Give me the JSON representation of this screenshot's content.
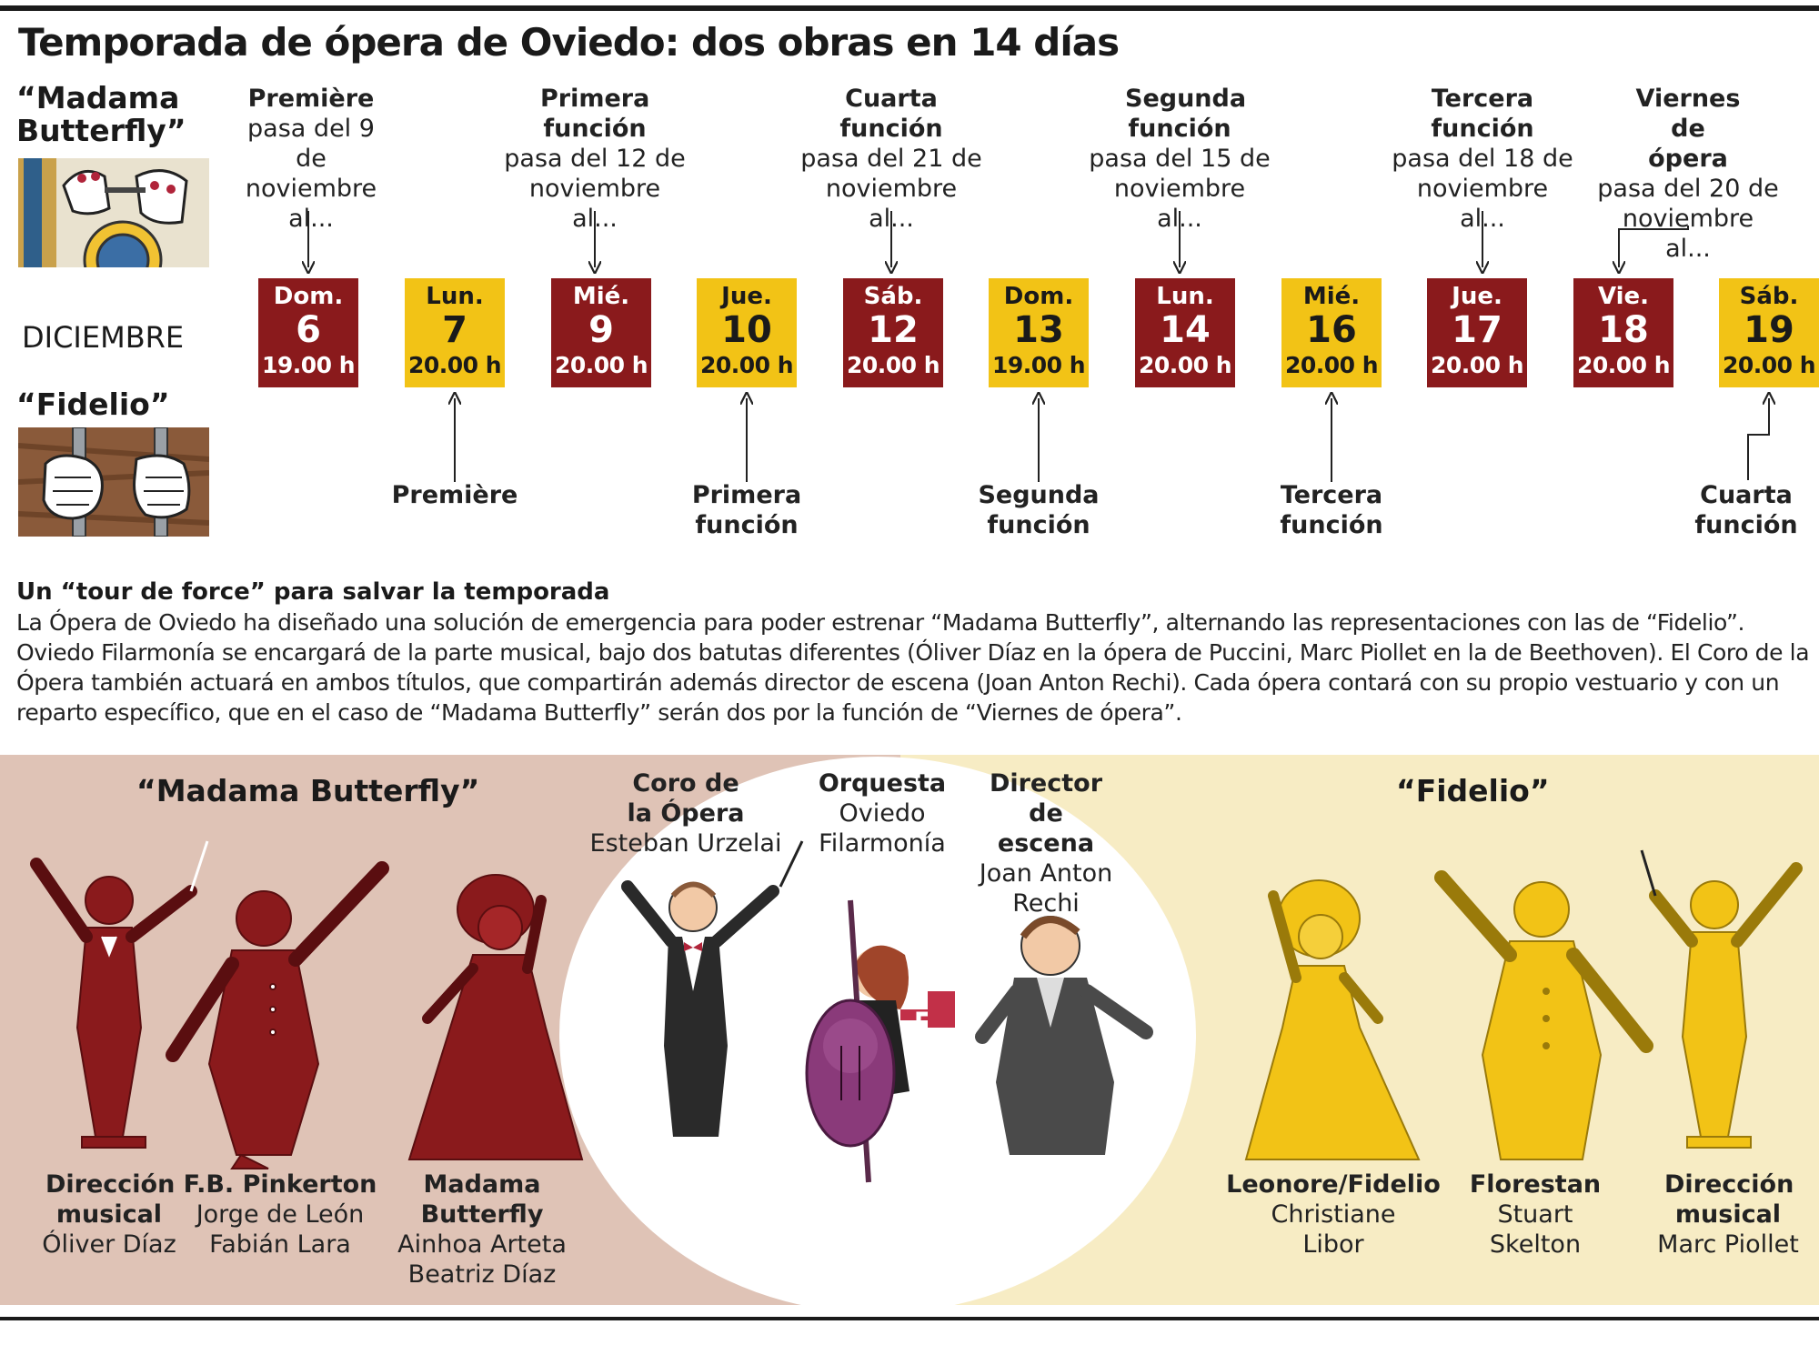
{
  "title": "Temporada de ópera de Oviedo: dos obras en 14 días",
  "month": "DICIEMBRE",
  "operas": {
    "butterfly": {
      "label_line1": "“Madama",
      "label_line2": "Butterfly”",
      "color": "#8a1a1c"
    },
    "fidelio": {
      "label": "“Fidelio”",
      "color": "#f2c316"
    }
  },
  "dates": [
    {
      "day": "Dom.",
      "num": "6",
      "time": "19.00 h",
      "opera": "butterfly"
    },
    {
      "day": "Lun.",
      "num": "7",
      "time": "20.00 h",
      "opera": "fidelio"
    },
    {
      "day": "Mié.",
      "num": "9",
      "time": "20.00 h",
      "opera": "butterfly"
    },
    {
      "day": "Jue.",
      "num": "10",
      "time": "20.00 h",
      "opera": "fidelio"
    },
    {
      "day": "Sáb.",
      "num": "12",
      "time": "20.00 h",
      "opera": "butterfly"
    },
    {
      "day": "Dom.",
      "num": "13",
      "time": "19.00 h",
      "opera": "fidelio"
    },
    {
      "day": "Lun.",
      "num": "14",
      "time": "20.00 h",
      "opera": "butterfly"
    },
    {
      "day": "Mié.",
      "num": "16",
      "time": "20.00 h",
      "opera": "fidelio"
    },
    {
      "day": "Jue.",
      "num": "17",
      "time": "20.00 h",
      "opera": "butterfly"
    },
    {
      "day": "Vie.",
      "num": "18",
      "time": "20.00 h",
      "opera": "butterfly"
    },
    {
      "day": "Sáb.",
      "num": "19",
      "time": "20.00 h",
      "opera": "fidelio"
    }
  ],
  "butterfly_notes": [
    {
      "head": "Première",
      "text": "pasa del 9 de noviembre al..."
    },
    {
      "head": "Primera función",
      "text": "pasa del 12 de noviembre al..."
    },
    {
      "head": "Cuarta función",
      "text": "pasa del 21 de noviembre al..."
    },
    {
      "head": "Segunda función",
      "text": "pasa del 15 de noviembre al..."
    },
    {
      "head": "Tercera función",
      "text": "pasa del 18 de noviembre al..."
    },
    {
      "head": "Viernes de ópera",
      "text": "pasa del 20 de noviembre al..."
    }
  ],
  "fidelio_notes": [
    {
      "head": "Première"
    },
    {
      "head": "Primera función"
    },
    {
      "head": "Segunda función"
    },
    {
      "head": "Tercera función"
    },
    {
      "head": "Cuarta función"
    }
  ],
  "article": {
    "heading": "Un “tour de force” para salvar la temporada",
    "body": "La Ópera de Oviedo ha diseñado una solución de emergencia para poder estrenar “Madama Butterfly”, alternando las representaciones con las de “Fidelio”. Oviedo Filarmonía se encargará de la parte musical, bajo dos batutas diferentes (Óliver Díaz en la ópera de Puccini, Marc Piollet en la de Beethoven). El Coro de la Ópera también actuará en ambos títulos, que compartirán además director de escena (Joan Anton Rechi). Cada ópera contará con su propio vestuario y con un reparto específico, que en el caso de “Madama Butterfly” serán dos por la función de “Viernes de ópera”."
  },
  "cast_section": {
    "butterfly_title": "“Madama Butterfly”",
    "fidelio_title": "“Fidelio”",
    "butterfly": [
      {
        "role": "Dirección musical",
        "names": [
          "Óliver Díaz"
        ]
      },
      {
        "role": "F.B. Pinkerton",
        "names": [
          "Jorge de León",
          "Fabián Lara"
        ]
      },
      {
        "role": "Madama Butterfly",
        "names": [
          "Ainhoa Arteta",
          "Beatriz Díaz"
        ]
      }
    ],
    "shared": [
      {
        "role": "Coro de la Ópera",
        "names": [
          "Esteban Urzelai"
        ]
      },
      {
        "role": "Orquesta",
        "names": [
          "Oviedo Filarmonía"
        ]
      },
      {
        "role": "Director de escena",
        "names": [
          "Joan Anton Rechi"
        ]
      }
    ],
    "fidelio": [
      {
        "role": "Leonore/Fidelio",
        "names": [
          "Christiane Libor"
        ]
      },
      {
        "role": "Florestan",
        "names": [
          "Stuart Skelton"
        ]
      },
      {
        "role": "Dirección musical",
        "names": [
          "Marc Piollet"
        ]
      }
    ]
  },
  "icons": [
    "hands-opening-fan-icon",
    "hands-gripping-bars-icon",
    "conductor-icon",
    "tenor-icon",
    "soprano-icon",
    "bassist-icon"
  ]
}
